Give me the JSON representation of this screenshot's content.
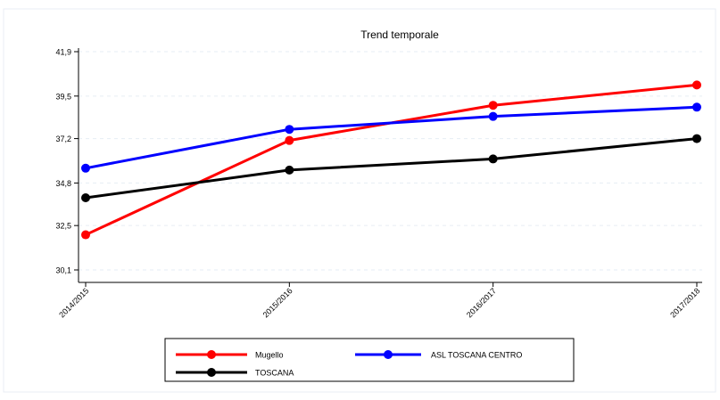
{
  "chart_data": {
    "type": "line",
    "title": "Trend temporale",
    "xlabel": "",
    "ylabel": "",
    "categories": [
      "2014/2015",
      "2015/2016",
      "2016/2017",
      "2017/2018"
    ],
    "yticks": [
      "30,1",
      "32,5",
      "34,8",
      "37,2",
      "39,5",
      "41,9"
    ],
    "ylim": [
      30.1,
      41.9
    ],
    "grid": true,
    "legend_position": "bottom",
    "series": [
      {
        "name": "Mugello",
        "color": "#ff0000",
        "values": [
          32.0,
          37.1,
          39.0,
          40.1
        ]
      },
      {
        "name": "ASL TOSCANA CENTRO",
        "color": "#0000ff",
        "values": [
          35.6,
          37.7,
          38.4,
          38.9
        ]
      },
      {
        "name": "TOSCANA",
        "color": "#000000",
        "values": [
          34.0,
          35.5,
          36.1,
          37.2
        ]
      }
    ]
  }
}
